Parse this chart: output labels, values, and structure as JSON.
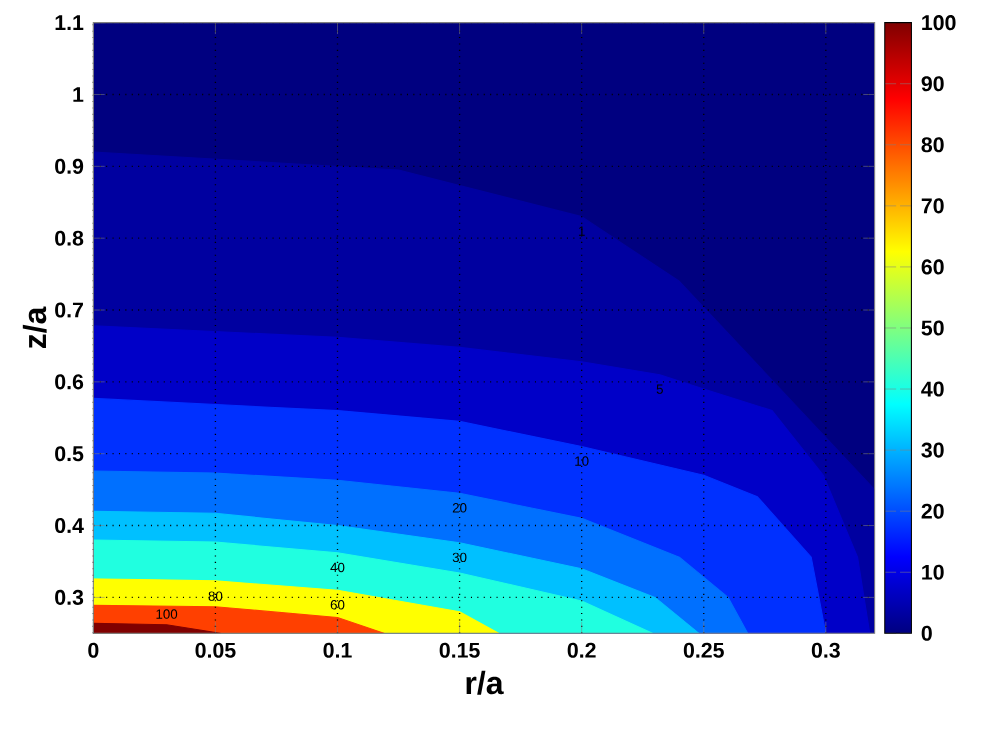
{
  "chart_data": {
    "type": "area",
    "xlabel": "r/a",
    "ylabel": "z/a",
    "xlim": [
      0,
      0.32
    ],
    "ylim": [
      0.25,
      1.1
    ],
    "xticks": [
      0,
      0.05,
      0.1,
      0.15,
      0.2,
      0.25,
      0.3
    ],
    "yticks": [
      0.3,
      0.4,
      0.5,
      0.6,
      0.7,
      0.8,
      0.9,
      1,
      1.1
    ],
    "grid": true,
    "clim": [
      0,
      100
    ],
    "cticks": [
      0,
      10,
      20,
      30,
      40,
      50,
      60,
      70,
      80,
      90,
      100
    ],
    "series": [
      {
        "name": "1",
        "color": "#0000a0",
        "x": [
          0,
          0.125,
          0.2,
          0.24,
          0.28,
          0.32
        ],
        "values": [
          0.92,
          0.895,
          0.83,
          0.74,
          null,
          0.45
        ]
      },
      {
        "name": "5",
        "color": "#0000c8",
        "x": [
          0,
          0.1,
          0.15,
          0.2,
          0.232,
          0.25,
          0.278,
          0.299,
          0.313,
          0.318
        ],
        "values": [
          0.678,
          0.662,
          0.648,
          0.628,
          0.61,
          0.59,
          0.56,
          0.47,
          0.356,
          0.25
        ]
      },
      {
        "name": "10",
        "color": "#0030ff",
        "x": [
          0,
          0.1,
          0.15,
          0.2,
          0.25,
          0.272,
          0.294,
          0.3
        ],
        "values": [
          0.577,
          0.56,
          0.545,
          0.51,
          0.47,
          0.44,
          0.356,
          0.25
        ]
      },
      {
        "name": "20",
        "color": "#0070ff",
        "x": [
          0,
          0.05,
          0.1,
          0.15,
          0.2,
          0.24,
          0.26,
          0.268
        ],
        "values": [
          0.476,
          0.473,
          0.463,
          0.445,
          0.41,
          0.356,
          0.3,
          0.25
        ]
      },
      {
        "name": "30",
        "color": "#00c0ff",
        "x": [
          0,
          0.05,
          0.1,
          0.15,
          0.2,
          0.23,
          0.248
        ],
        "values": [
          0.42,
          0.417,
          0.4,
          0.376,
          0.34,
          0.3,
          0.25
        ]
      },
      {
        "name": "40",
        "color": "#20ffe0",
        "x": [
          0,
          0.05,
          0.1,
          0.15,
          0.2,
          0.229
        ],
        "values": [
          0.38,
          0.377,
          0.362,
          0.334,
          0.295,
          0.25
        ]
      },
      {
        "name": "60",
        "color": "#ffff00",
        "x": [
          0,
          0.05,
          0.1,
          0.15,
          0.166
        ],
        "values": [
          0.326,
          0.323,
          0.31,
          0.28,
          0.25
        ]
      },
      {
        "name": "80",
        "color": "#ff4000",
        "x": [
          0,
          0.05,
          0.1,
          0.119
        ],
        "values": [
          0.289,
          0.287,
          0.272,
          0.25
        ]
      },
      {
        "name": "100",
        "color": "#800000",
        "x": [
          0,
          0.03,
          0.052
        ],
        "values": [
          0.264,
          0.262,
          0.25
        ]
      }
    ]
  }
}
